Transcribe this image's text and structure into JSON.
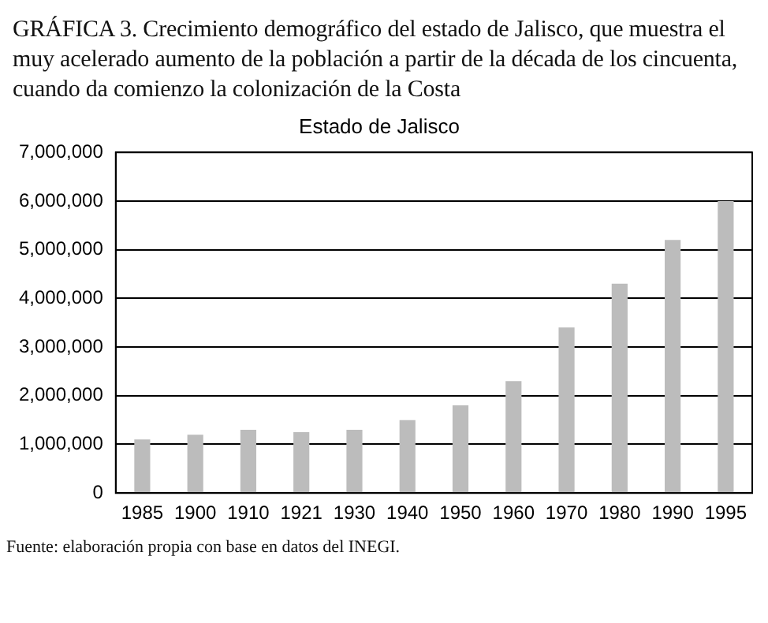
{
  "chart_data": {
    "type": "bar",
    "title": "GRÁFICA 3. Crecimiento demográfico del estado de Jalisco, que muestra el muy acelerado aumento de la población a partir de la década de los cincuenta, cuando da comienzo la colonización de la Costa",
    "subtitle": "Estado de Jalisco",
    "categories": [
      "1985",
      "1900",
      "1910",
      "1921",
      "1930",
      "1940",
      "1950",
      "1960",
      "1970",
      "1980",
      "1990",
      "1995"
    ],
    "values": [
      1100000,
      1200000,
      1300000,
      1250000,
      1300000,
      1500000,
      1800000,
      2300000,
      3400000,
      4300000,
      5200000,
      6000000
    ],
    "color": "#bcbcbc",
    "ylim": [
      0,
      7000000
    ],
    "yticks": [
      0,
      {
        "value": 1000000,
        "label": "1,000,000"
      },
      {
        "value": 2000000,
        "label": "2,000,000"
      },
      {
        "value": 3000000,
        "label": "3,000,000"
      },
      {
        "value": 4000000,
        "label": "4,000,000"
      },
      {
        "value": 5000000,
        "label": "5,000,000"
      },
      {
        "value": 6000000,
        "label": "6,000,000"
      },
      {
        "value": 7000000,
        "label": "7,000,000"
      }
    ],
    "grid": "y",
    "annotations": [
      "Fuente: elaboración propia con base en datos del INEGI."
    ]
  }
}
